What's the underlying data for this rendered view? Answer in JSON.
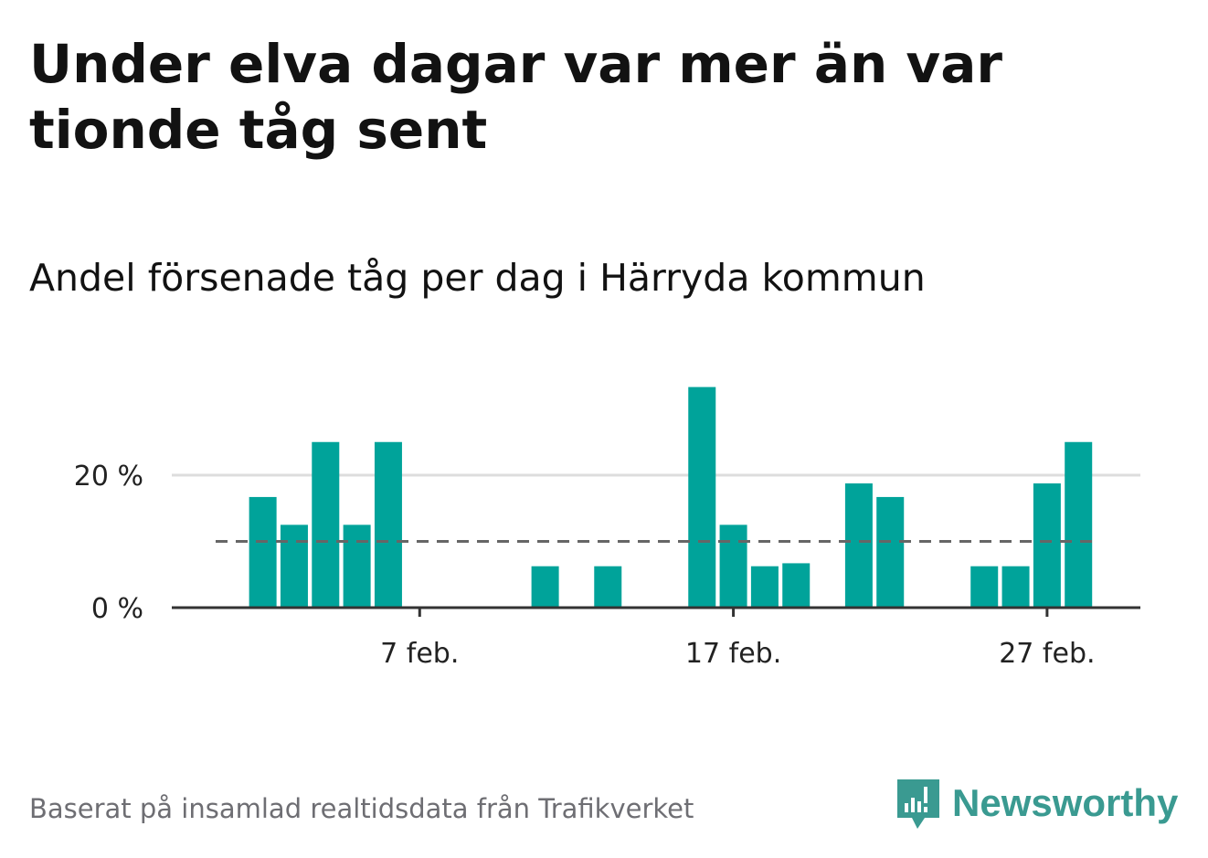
{
  "title": "Under elva dagar var mer än var tionde tåg sent",
  "subtitle": "Andel försenade tåg per dag i Härryda kommun",
  "source": "Baserat på insamlad realtidsdata från Trafikverket",
  "logo": {
    "text": "Newsworthy",
    "icon": "newsworthy-logo-icon",
    "color": "#3a9a91"
  },
  "colors": {
    "bar": "#00a39a",
    "grid": "#dddddd",
    "axis": "#333333",
    "reference": "#666666"
  },
  "chart_data": {
    "type": "bar",
    "x_start_day": 1,
    "days": [
      1,
      2,
      3,
      4,
      5,
      6,
      7,
      8,
      9,
      10,
      11,
      12,
      13,
      14,
      15,
      16,
      17,
      18,
      19,
      20,
      21,
      22,
      23,
      24,
      25,
      26,
      27,
      28
    ],
    "values": [
      0,
      16.7,
      12.5,
      25,
      12.5,
      25,
      0,
      0,
      0,
      0,
      6.25,
      0,
      6.25,
      0,
      0,
      33.3,
      12.5,
      6.25,
      6.7,
      0,
      18.75,
      16.7,
      0,
      0,
      6.25,
      6.25,
      18.75,
      25
    ],
    "reference_line": 10,
    "ylim": [
      0,
      40
    ],
    "yticks": [
      {
        "value": 0,
        "label": "0 %"
      },
      {
        "value": 20,
        "label": "20 %"
      }
    ],
    "xticks": [
      {
        "day": 7,
        "label": "7 feb."
      },
      {
        "day": 17,
        "label": "17 feb."
      },
      {
        "day": 27,
        "label": "27 feb."
      }
    ],
    "grid": true
  }
}
